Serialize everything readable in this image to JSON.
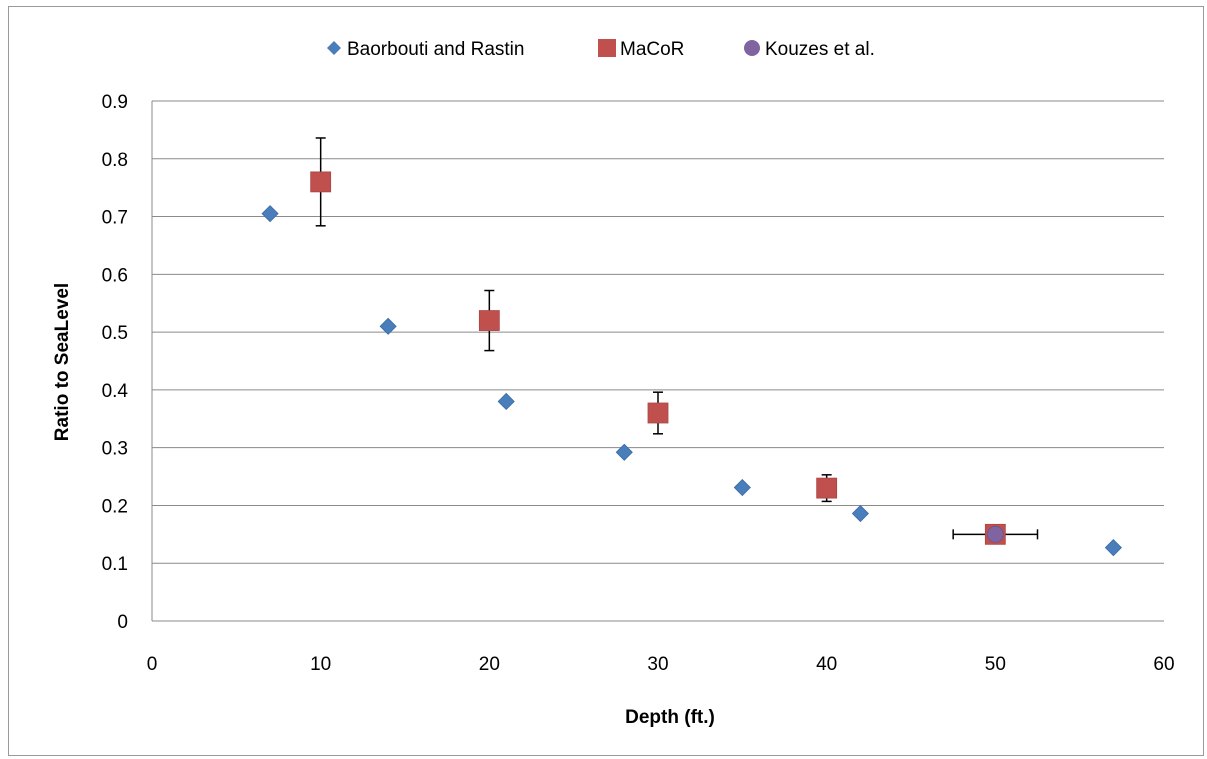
{
  "chart_data": {
    "type": "scatter",
    "xlabel": "Depth (ft.)",
    "ylabel": "Ratio to SeaLevel",
    "xlim": [
      0,
      60
    ],
    "ylim": [
      0,
      0.9
    ],
    "x_ticks": [
      "0",
      "10",
      "20",
      "30",
      "40",
      "50",
      "60"
    ],
    "y_ticks": [
      "0",
      "0.1",
      "0.2",
      "0.3",
      "0.4",
      "0.5",
      "0.6",
      "0.7",
      "0.8",
      "0.9"
    ],
    "grid": "horizontal",
    "legend_position": "top",
    "series": [
      {
        "name": "Baorbouti and Rastin",
        "marker": "diamond",
        "color": "#4a7ebb",
        "points": [
          {
            "x": 7,
            "y": 0.705
          },
          {
            "x": 14,
            "y": 0.51
          },
          {
            "x": 21,
            "y": 0.38
          },
          {
            "x": 28,
            "y": 0.292
          },
          {
            "x": 35,
            "y": 0.231
          },
          {
            "x": 42,
            "y": 0.186
          },
          {
            "x": 57,
            "y": 0.127
          }
        ]
      },
      {
        "name": "MaCoR",
        "marker": "square",
        "color": "#c0504d",
        "points": [
          {
            "x": 10,
            "y": 0.76,
            "yerr_low": 0.684,
            "yerr_high": 0.836
          },
          {
            "x": 20,
            "y": 0.52,
            "yerr_low": 0.468,
            "yerr_high": 0.572
          },
          {
            "x": 30,
            "y": 0.36,
            "yerr_low": 0.324,
            "yerr_high": 0.396
          },
          {
            "x": 40,
            "y": 0.23,
            "yerr_low": 0.207,
            "yerr_high": 0.253
          },
          {
            "x": 50,
            "y": 0.15
          }
        ]
      },
      {
        "name": "Kouzes et al.",
        "marker": "circle",
        "color": "#8064a2",
        "points": [
          {
            "x": 50,
            "y": 0.15,
            "xerr_low": 47.5,
            "xerr_high": 52.5
          }
        ]
      }
    ]
  }
}
